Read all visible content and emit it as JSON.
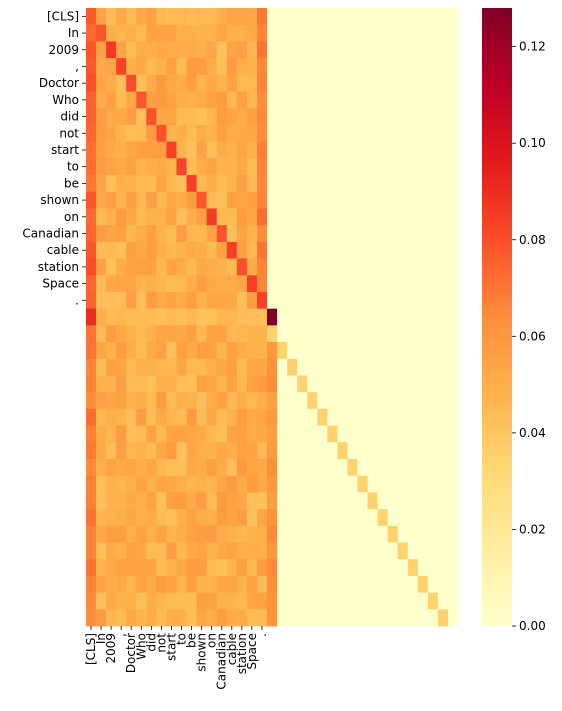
{
  "chart_data": {
    "type": "heatmap",
    "title": "",
    "xlabel": "",
    "ylabel": "",
    "row_labels": [
      "[CLS]",
      "In",
      "2009",
      ",",
      "Doctor",
      "Who",
      "did",
      "not",
      "start",
      "to",
      "be",
      "shown",
      "on",
      "Canadian",
      "cable",
      "station",
      "Space",
      ".",
      "",
      "",
      "",
      "",
      "",
      "",
      "",
      "",
      "",
      "",
      "",
      "",
      "",
      "",
      "",
      "",
      "",
      "",
      ""
    ],
    "col_labels": [
      "[CLS]",
      "In",
      "2009",
      ",",
      "Doctor",
      "Who",
      "did",
      "not",
      "start",
      "to",
      "be",
      "shown",
      "on",
      "Canadian",
      "cable",
      "station",
      "Space",
      ".",
      "",
      "",
      "",
      "",
      "",
      "",
      "",
      "",
      "",
      "",
      "",
      "",
      "",
      "",
      "",
      "",
      "",
      "",
      ""
    ],
    "token_count": 18,
    "total_rows": 37,
    "colormap": "YlOrRd",
    "vmin": 0.0,
    "vmax": 0.128,
    "colorbar": {
      "ticks": [
        0.0,
        0.02,
        0.04,
        0.06,
        0.08,
        0.1,
        0.12
      ],
      "tick_labels": [
        "0.00",
        "0.02",
        "0.04",
        "0.06",
        "0.08",
        "0.10",
        "0.12"
      ]
    },
    "values_description_approx": {
      "cls_column_mean": 0.075,
      "last_token_column_mean": 0.068,
      "diagonal_mean": 0.083,
      "off_diagonal_mean": 0.05,
      "padding_diagonal": 0.035,
      "padding_other": 0.0,
      "row_after_period_first": 0.09,
      "row_after_period_last": 0.128
    }
  }
}
